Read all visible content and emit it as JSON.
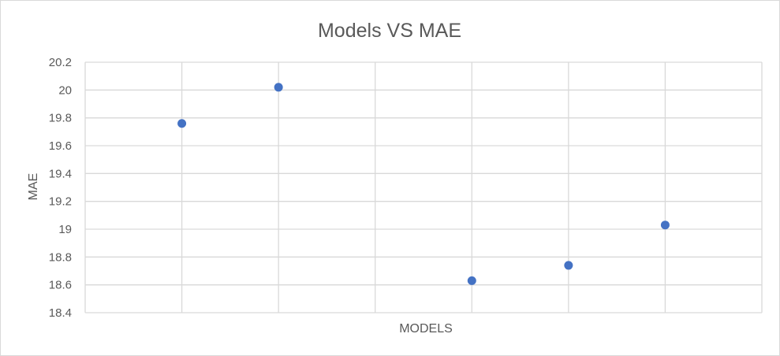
{
  "chart_data": {
    "type": "scatter",
    "title": "Models VS MAE",
    "xlabel": "MODELS",
    "ylabel": "MAE",
    "xlim": [
      0,
      7
    ],
    "ylim": [
      18.4,
      20.2
    ],
    "y_ticks": [
      "18.4",
      "18.6",
      "18.8",
      "19",
      "19.2",
      "19.4",
      "19.6",
      "19.8",
      "20",
      "20.2"
    ],
    "grid": true,
    "legend": "none",
    "series": [
      {
        "color": "#4472c4",
        "points": [
          {
            "x": 1,
            "y": 19.76
          },
          {
            "x": 2,
            "y": 20.02
          },
          {
            "x": 4,
            "y": 18.63
          },
          {
            "x": 5,
            "y": 18.74
          },
          {
            "x": 6,
            "y": 19.03
          }
        ]
      }
    ]
  }
}
